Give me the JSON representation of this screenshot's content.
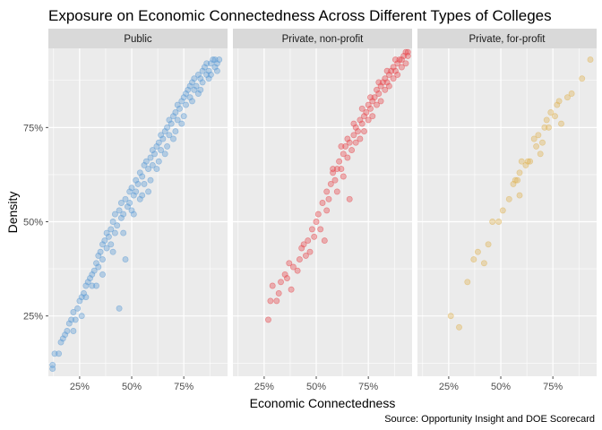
{
  "chart_data": {
    "type": "scatter",
    "title": "Exposure on Economic Connectedness Across Different Types of Colleges",
    "xlabel": "Economic Connectedness",
    "ylabel": "Density",
    "caption": "Source: Opportunity Insight and DOE Scorecard",
    "xlim": [
      0.1,
      0.96
    ],
    "ylim": [
      0.09,
      0.96
    ],
    "x_ticks": [
      0.25,
      0.5,
      0.75
    ],
    "x_tick_labels": [
      "25%",
      "50%",
      "75%"
    ],
    "y_ticks": [
      0.25,
      0.5,
      0.75
    ],
    "y_tick_labels": [
      "25%",
      "50%",
      "75%"
    ],
    "grid": true,
    "panels": [
      {
        "name": "Public",
        "color": "#5b9bd5",
        "points": [
          [
            0.12,
            0.11
          ],
          [
            0.12,
            0.12
          ],
          [
            0.13,
            0.15
          ],
          [
            0.15,
            0.15
          ],
          [
            0.16,
            0.18
          ],
          [
            0.17,
            0.19
          ],
          [
            0.18,
            0.2
          ],
          [
            0.19,
            0.21
          ],
          [
            0.2,
            0.23
          ],
          [
            0.21,
            0.24
          ],
          [
            0.22,
            0.26
          ],
          [
            0.23,
            0.24
          ],
          [
            0.24,
            0.27
          ],
          [
            0.25,
            0.29
          ],
          [
            0.26,
            0.3
          ],
          [
            0.27,
            0.31
          ],
          [
            0.28,
            0.3
          ],
          [
            0.28,
            0.33
          ],
          [
            0.29,
            0.34
          ],
          [
            0.3,
            0.35
          ],
          [
            0.31,
            0.36
          ],
          [
            0.31,
            0.33
          ],
          [
            0.32,
            0.37
          ],
          [
            0.33,
            0.39
          ],
          [
            0.34,
            0.38
          ],
          [
            0.34,
            0.41
          ],
          [
            0.35,
            0.42
          ],
          [
            0.36,
            0.4
          ],
          [
            0.36,
            0.44
          ],
          [
            0.37,
            0.45
          ],
          [
            0.38,
            0.43
          ],
          [
            0.38,
            0.47
          ],
          [
            0.39,
            0.46
          ],
          [
            0.4,
            0.48
          ],
          [
            0.4,
            0.44
          ],
          [
            0.41,
            0.5
          ],
          [
            0.42,
            0.47
          ],
          [
            0.42,
            0.52
          ],
          [
            0.43,
            0.49
          ],
          [
            0.44,
            0.53
          ],
          [
            0.44,
            0.27
          ],
          [
            0.45,
            0.51
          ],
          [
            0.45,
            0.55
          ],
          [
            0.46,
            0.52
          ],
          [
            0.47,
            0.56
          ],
          [
            0.47,
            0.4
          ],
          [
            0.48,
            0.54
          ],
          [
            0.49,
            0.58
          ],
          [
            0.49,
            0.55
          ],
          [
            0.5,
            0.59
          ],
          [
            0.5,
            0.53
          ],
          [
            0.51,
            0.57
          ],
          [
            0.52,
            0.61
          ],
          [
            0.52,
            0.58
          ],
          [
            0.53,
            0.6
          ],
          [
            0.54,
            0.63
          ],
          [
            0.54,
            0.56
          ],
          [
            0.55,
            0.62
          ],
          [
            0.56,
            0.65
          ],
          [
            0.56,
            0.6
          ],
          [
            0.57,
            0.66
          ],
          [
            0.58,
            0.64
          ],
          [
            0.58,
            0.58
          ],
          [
            0.59,
            0.67
          ],
          [
            0.6,
            0.65
          ],
          [
            0.6,
            0.69
          ],
          [
            0.61,
            0.68
          ],
          [
            0.62,
            0.7
          ],
          [
            0.62,
            0.64
          ],
          [
            0.63,
            0.71
          ],
          [
            0.64,
            0.69
          ],
          [
            0.64,
            0.73
          ],
          [
            0.65,
            0.72
          ],
          [
            0.66,
            0.74
          ],
          [
            0.66,
            0.68
          ],
          [
            0.67,
            0.75
          ],
          [
            0.68,
            0.73
          ],
          [
            0.68,
            0.77
          ],
          [
            0.69,
            0.76
          ],
          [
            0.7,
            0.78
          ],
          [
            0.7,
            0.72
          ],
          [
            0.71,
            0.79
          ],
          [
            0.72,
            0.77
          ],
          [
            0.72,
            0.81
          ],
          [
            0.73,
            0.8
          ],
          [
            0.74,
            0.82
          ],
          [
            0.74,
            0.76
          ],
          [
            0.75,
            0.83
          ],
          [
            0.76,
            0.81
          ],
          [
            0.76,
            0.84
          ],
          [
            0.77,
            0.85
          ],
          [
            0.78,
            0.83
          ],
          [
            0.78,
            0.86
          ],
          [
            0.79,
            0.87
          ],
          [
            0.8,
            0.85
          ],
          [
            0.8,
            0.88
          ],
          [
            0.81,
            0.86
          ],
          [
            0.82,
            0.89
          ],
          [
            0.82,
            0.84
          ],
          [
            0.83,
            0.88
          ],
          [
            0.84,
            0.9
          ],
          [
            0.84,
            0.87
          ],
          [
            0.85,
            0.91
          ],
          [
            0.86,
            0.89
          ],
          [
            0.86,
            0.92
          ],
          [
            0.87,
            0.9
          ],
          [
            0.88,
            0.92
          ],
          [
            0.88,
            0.89
          ],
          [
            0.89,
            0.93
          ],
          [
            0.9,
            0.91
          ],
          [
            0.9,
            0.93
          ],
          [
            0.91,
            0.92
          ],
          [
            0.92,
            0.93
          ],
          [
            0.22,
            0.21
          ],
          [
            0.26,
            0.25
          ],
          [
            0.33,
            0.33
          ],
          [
            0.36,
            0.36
          ],
          [
            0.41,
            0.42
          ],
          [
            0.46,
            0.47
          ],
          [
            0.51,
            0.52
          ],
          [
            0.55,
            0.57
          ],
          [
            0.59,
            0.61
          ],
          [
            0.63,
            0.66
          ],
          [
            0.67,
            0.7
          ],
          [
            0.71,
            0.74
          ],
          [
            0.75,
            0.78
          ],
          [
            0.79,
            0.82
          ],
          [
            0.83,
            0.85
          ],
          [
            0.87,
            0.88
          ],
          [
            0.91,
            0.9
          ]
        ]
      },
      {
        "name": "Private, non-profit",
        "color": "#e8474c",
        "points": [
          [
            0.27,
            0.24
          ],
          [
            0.28,
            0.29
          ],
          [
            0.29,
            0.33
          ],
          [
            0.31,
            0.29
          ],
          [
            0.32,
            0.31
          ],
          [
            0.33,
            0.34
          ],
          [
            0.35,
            0.36
          ],
          [
            0.36,
            0.35
          ],
          [
            0.37,
            0.39
          ],
          [
            0.38,
            0.32
          ],
          [
            0.39,
            0.38
          ],
          [
            0.41,
            0.37
          ],
          [
            0.42,
            0.4
          ],
          [
            0.43,
            0.43
          ],
          [
            0.44,
            0.44
          ],
          [
            0.45,
            0.41
          ],
          [
            0.46,
            0.45
          ],
          [
            0.47,
            0.42
          ],
          [
            0.48,
            0.48
          ],
          [
            0.49,
            0.46
          ],
          [
            0.5,
            0.5
          ],
          [
            0.51,
            0.52
          ],
          [
            0.52,
            0.48
          ],
          [
            0.53,
            0.55
          ],
          [
            0.54,
            0.45
          ],
          [
            0.55,
            0.53
          ],
          [
            0.55,
            0.58
          ],
          [
            0.56,
            0.56
          ],
          [
            0.57,
            0.6
          ],
          [
            0.58,
            0.63
          ],
          [
            0.59,
            0.61
          ],
          [
            0.6,
            0.64
          ],
          [
            0.6,
            0.58
          ],
          [
            0.61,
            0.66
          ],
          [
            0.62,
            0.64
          ],
          [
            0.63,
            0.68
          ],
          [
            0.63,
            0.62
          ],
          [
            0.64,
            0.7
          ],
          [
            0.65,
            0.67
          ],
          [
            0.66,
            0.71
          ],
          [
            0.66,
            0.56
          ],
          [
            0.67,
            0.69
          ],
          [
            0.68,
            0.73
          ],
          [
            0.69,
            0.71
          ],
          [
            0.69,
            0.75
          ],
          [
            0.7,
            0.74
          ],
          [
            0.71,
            0.72
          ],
          [
            0.71,
            0.77
          ],
          [
            0.72,
            0.76
          ],
          [
            0.73,
            0.78
          ],
          [
            0.73,
            0.74
          ],
          [
            0.74,
            0.79
          ],
          [
            0.75,
            0.77
          ],
          [
            0.75,
            0.81
          ],
          [
            0.76,
            0.8
          ],
          [
            0.77,
            0.82
          ],
          [
            0.77,
            0.78
          ],
          [
            0.78,
            0.83
          ],
          [
            0.79,
            0.81
          ],
          [
            0.79,
            0.85
          ],
          [
            0.8,
            0.84
          ],
          [
            0.81,
            0.86
          ],
          [
            0.81,
            0.82
          ],
          [
            0.82,
            0.87
          ],
          [
            0.83,
            0.85
          ],
          [
            0.83,
            0.88
          ],
          [
            0.84,
            0.87
          ],
          [
            0.85,
            0.89
          ],
          [
            0.85,
            0.86
          ],
          [
            0.86,
            0.9
          ],
          [
            0.87,
            0.88
          ],
          [
            0.87,
            0.91
          ],
          [
            0.88,
            0.9
          ],
          [
            0.89,
            0.92
          ],
          [
            0.89,
            0.89
          ],
          [
            0.9,
            0.93
          ],
          [
            0.91,
            0.91
          ],
          [
            0.91,
            0.93
          ],
          [
            0.92,
            0.94
          ],
          [
            0.93,
            0.92
          ],
          [
            0.93,
            0.95
          ],
          [
            0.94,
            0.94
          ],
          [
            0.94,
            0.95
          ],
          [
            0.58,
            0.64
          ],
          [
            0.62,
            0.7
          ],
          [
            0.65,
            0.72
          ],
          [
            0.68,
            0.76
          ],
          [
            0.72,
            0.8
          ],
          [
            0.76,
            0.83
          ],
          [
            0.8,
            0.87
          ],
          [
            0.84,
            0.9
          ],
          [
            0.88,
            0.93
          ]
        ]
      },
      {
        "name": "Private, for-profit",
        "color": "#e0b454",
        "points": [
          [
            0.26,
            0.25
          ],
          [
            0.3,
            0.22
          ],
          [
            0.34,
            0.34
          ],
          [
            0.37,
            0.4
          ],
          [
            0.39,
            0.42
          ],
          [
            0.42,
            0.39
          ],
          [
            0.44,
            0.44
          ],
          [
            0.46,
            0.5
          ],
          [
            0.49,
            0.5
          ],
          [
            0.51,
            0.53
          ],
          [
            0.54,
            0.56
          ],
          [
            0.56,
            0.6
          ],
          [
            0.57,
            0.61
          ],
          [
            0.58,
            0.61
          ],
          [
            0.59,
            0.63
          ],
          [
            0.6,
            0.66
          ],
          [
            0.62,
            0.65
          ],
          [
            0.63,
            0.66
          ],
          [
            0.64,
            0.66
          ],
          [
            0.66,
            0.72
          ],
          [
            0.67,
            0.7
          ],
          [
            0.68,
            0.73
          ],
          [
            0.7,
            0.71
          ],
          [
            0.71,
            0.75
          ],
          [
            0.72,
            0.77
          ],
          [
            0.73,
            0.75
          ],
          [
            0.74,
            0.79
          ],
          [
            0.76,
            0.78
          ],
          [
            0.77,
            0.81
          ],
          [
            0.78,
            0.82
          ],
          [
            0.79,
            0.76
          ],
          [
            0.82,
            0.83
          ],
          [
            0.84,
            0.84
          ],
          [
            0.89,
            0.88
          ],
          [
            0.93,
            0.93
          ],
          [
            0.59,
            0.57
          ],
          [
            0.69,
            0.68
          ]
        ]
      }
    ]
  }
}
